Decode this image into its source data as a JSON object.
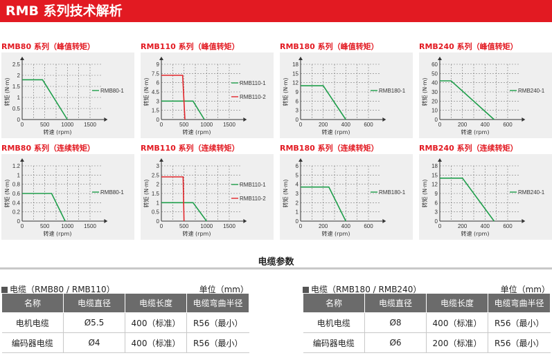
{
  "header": {
    "title": "RMB 系列技术解析"
  },
  "colors": {
    "accent": "#e21a22",
    "green": "#1e9e4a",
    "red": "#e3262b"
  },
  "charts": [
    {
      "title": "RMB80 系列（峰值转矩）",
      "ylabel": "转矩 (N·m)",
      "xlabel": "转速 (rpm)",
      "yticks": [
        "0",
        "0.5",
        "1",
        "1.5",
        "2",
        "2.5"
      ],
      "ymax": 2.5,
      "ydiv": 5,
      "xticks": [
        "0",
        "500",
        "1000",
        "1500"
      ],
      "xmax": 1500,
      "series": [
        {
          "name": "RMB80-1",
          "color": "#1e9e4a",
          "points": [
            [
              0,
              1.8
            ],
            [
              450,
              1.8
            ],
            [
              1000,
              0
            ],
            [
              1000,
              0
            ]
          ]
        }
      ]
    },
    {
      "title": "RMB110 系列（峰值转矩）",
      "ylabel": "转矩 (N·m)",
      "xlabel": "转速 (rpm)",
      "yticks": [
        "0",
        "1.5",
        "3",
        "4.5",
        "6",
        "7.5",
        "9"
      ],
      "ymax": 9,
      "ydiv": 6,
      "xticks": [
        "0",
        "500",
        "1000",
        "1500"
      ],
      "xmax": 1500,
      "series": [
        {
          "name": "RMB110-1",
          "color": "#1e9e4a",
          "points": [
            [
              0,
              3
            ],
            [
              700,
              3
            ],
            [
              950,
              0
            ]
          ]
        },
        {
          "name": "RMB110-2",
          "color": "#e3262b",
          "points": [
            [
              0,
              7.2
            ],
            [
              470,
              7.2
            ],
            [
              520,
              0
            ]
          ]
        }
      ]
    },
    {
      "title": "RMB180 系列（峰值转矩）",
      "ylabel": "转矩 (N·m)",
      "xlabel": "转速 (rpm)",
      "yticks": [
        "0",
        "3",
        "6",
        "9",
        "12",
        "15",
        "18"
      ],
      "ymax": 18,
      "ydiv": 6,
      "xticks": [
        "0",
        "200",
        "400",
        "600"
      ],
      "xmax": 600,
      "series": [
        {
          "name": "RMB180-1",
          "color": "#1e9e4a",
          "points": [
            [
              0,
              11
            ],
            [
              200,
              11
            ],
            [
              400,
              0
            ]
          ]
        }
      ]
    },
    {
      "title": "RMB240 系列（峰值转矩）",
      "ylabel": "转矩 (N·m)",
      "xlabel": "转速 (rpm)",
      "yticks": [
        "0",
        "10",
        "20",
        "30",
        "40",
        "50",
        "60"
      ],
      "ymax": 60,
      "ydiv": 6,
      "xticks": [
        "0",
        "200",
        "400",
        "600"
      ],
      "xmax": 600,
      "series": [
        {
          "name": "RMB240-1",
          "color": "#1e9e4a",
          "points": [
            [
              0,
              42
            ],
            [
              100,
              42
            ],
            [
              480,
              0
            ]
          ]
        }
      ]
    },
    {
      "title": "RMB80 系列（连续转矩）",
      "ylabel": "转矩 (N·m)",
      "xlabel": "转速 (rpm)",
      "yticks": [
        "0",
        "0.2",
        "0.4",
        "0.6",
        "0.8",
        "1",
        "1.2"
      ],
      "ymax": 1.2,
      "ydiv": 6,
      "xticks": [
        "0",
        "500",
        "1000",
        "1500"
      ],
      "xmax": 1500,
      "series": [
        {
          "name": "RMB80-1",
          "color": "#1e9e4a",
          "points": [
            [
              0,
              0.6
            ],
            [
              650,
              0.6
            ],
            [
              950,
              0
            ]
          ]
        }
      ]
    },
    {
      "title": "RMB110 系列（连续转矩）",
      "ylabel": "转矩 (N·m)",
      "xlabel": "转速 (rpm)",
      "yticks": [
        "0",
        "0.5",
        "1",
        "1.5",
        "2",
        "2.5",
        "3"
      ],
      "ymax": 3,
      "ydiv": 6,
      "xticks": [
        "0",
        "500",
        "1000",
        "1500"
      ],
      "xmax": 1500,
      "series": [
        {
          "name": "RMB110-1",
          "color": "#1e9e4a",
          "points": [
            [
              0,
              1
            ],
            [
              700,
              1
            ],
            [
              1000,
              0
            ]
          ]
        },
        {
          "name": "RMB110-2",
          "color": "#e3262b",
          "points": [
            [
              0,
              2.4
            ],
            [
              480,
              2.4
            ],
            [
              500,
              0
            ]
          ]
        }
      ]
    },
    {
      "title": "RMB180 系列（连续转矩）",
      "ylabel": "转矩 (N·m)",
      "xlabel": "转速 (rpm)",
      "yticks": [
        "0",
        "1",
        "2",
        "3",
        "4",
        "5",
        "6"
      ],
      "ymax": 6,
      "ydiv": 6,
      "xticks": [
        "0",
        "200",
        "400",
        "600"
      ],
      "xmax": 600,
      "series": [
        {
          "name": "RMB180-1",
          "color": "#1e9e4a",
          "points": [
            [
              0,
              3.7
            ],
            [
              250,
              3.7
            ],
            [
              400,
              0
            ]
          ]
        }
      ]
    },
    {
      "title": "RMB240 系列（连续转矩）",
      "ylabel": "转矩 (N·m)",
      "xlabel": "转速 (rpm)",
      "yticks": [
        "0",
        "3",
        "6",
        "9",
        "12",
        "15",
        "18"
      ],
      "ymax": 18,
      "ydiv": 6,
      "xticks": [
        "0",
        "200",
        "400",
        "600"
      ],
      "xmax": 600,
      "series": [
        {
          "name": "RMB240-1",
          "color": "#1e9e4a",
          "points": [
            [
              0,
              14
            ],
            [
              200,
              14
            ],
            [
              480,
              0
            ]
          ]
        }
      ]
    }
  ],
  "cable_section": {
    "title": "电缆参数"
  },
  "tables": [
    {
      "title": "电缆（RMB80 / RMB110）",
      "unit": "单位（mm）",
      "headers": [
        "名称",
        "电缆直径",
        "电缆长度",
        "电缆弯曲半径"
      ],
      "rows": [
        [
          "电机电缆",
          "Ø5.5",
          "400（标准）",
          "R56（最小）"
        ],
        [
          "编码器电缆",
          "Ø4",
          "400（标准）",
          "R56（最小）"
        ]
      ]
    },
    {
      "title": "电缆（RMB180 / RMB240）",
      "unit": "单位（mm）",
      "headers": [
        "名称",
        "电缆直径",
        "电缆长度",
        "电缆弯曲半径"
      ],
      "rows": [
        [
          "电机电缆",
          "Ø8",
          "400（标准）",
          "R56（最小）"
        ],
        [
          "编码器电缆",
          "Ø6",
          "200（标准）",
          "R56（最小）"
        ]
      ]
    }
  ]
}
